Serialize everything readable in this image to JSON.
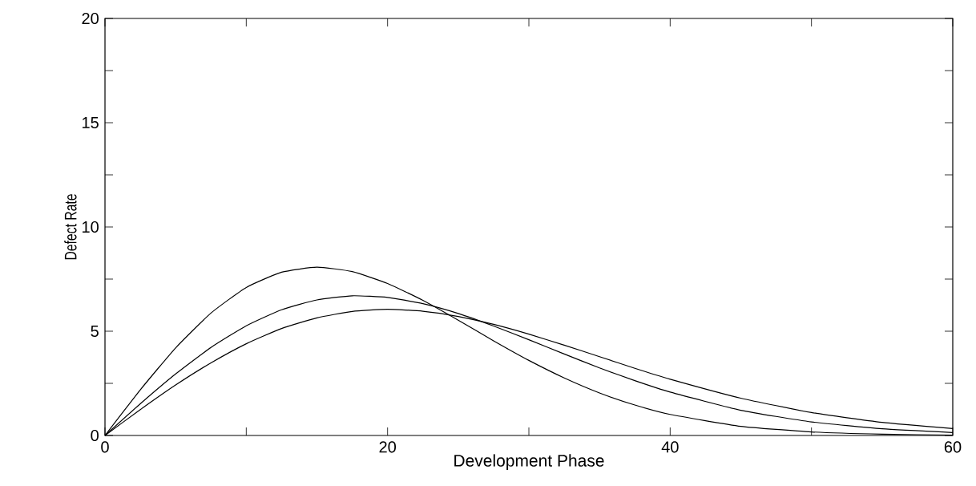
{
  "chart_data": {
    "type": "line",
    "xlabel": "Development Phase",
    "ylabel": "Defect Rate",
    "x": [
      0,
      2.5,
      5,
      7.5,
      10,
      12.5,
      15,
      17.5,
      20,
      22.5,
      25,
      27.5,
      30,
      32.5,
      35,
      37.5,
      40,
      45,
      50,
      55,
      60
    ],
    "series": [
      {
        "color": "#000000",
        "values": [
          0,
          2.19,
          4.2,
          5.87,
          7.1,
          7.83,
          8.07,
          7.86,
          7.29,
          6.48,
          5.53,
          4.54,
          3.6,
          2.76,
          2.04,
          1.46,
          1.01,
          0.44,
          0.17,
          0.06,
          0.02
        ]
      },
      {
        "color": "#000000",
        "values": [
          0,
          1.52,
          2.95,
          4.22,
          5.26,
          6.03,
          6.5,
          6.7,
          6.62,
          6.32,
          5.85,
          5.25,
          4.59,
          3.91,
          3.24,
          2.63,
          2.08,
          1.21,
          0.65,
          0.32,
          0.14
        ]
      },
      {
        "color": "#000000",
        "values": [
          0,
          1.24,
          2.42,
          3.48,
          4.4,
          5.13,
          5.64,
          5.95,
          6.05,
          5.96,
          5.71,
          5.33,
          4.86,
          4.33,
          3.78,
          3.22,
          2.7,
          1.79,
          1.1,
          0.63,
          0.33
        ]
      }
    ],
    "xlim": [
      0,
      60
    ],
    "ylim": [
      0,
      20
    ],
    "xticks": [
      0,
      {
        "value": 10,
        "label": null
      },
      20,
      {
        "value": 30,
        "label": null
      },
      40,
      {
        "value": 50,
        "label": null
      },
      60
    ],
    "yticks": [
      0,
      {
        "value": 2.5,
        "label": null
      },
      5,
      {
        "value": 7.5,
        "label": null
      },
      10,
      {
        "value": 12.5,
        "label": null
      },
      15,
      {
        "value": 17.5,
        "label": null
      },
      20
    ],
    "grid": false,
    "marker": "none",
    "line_style": "solid"
  }
}
